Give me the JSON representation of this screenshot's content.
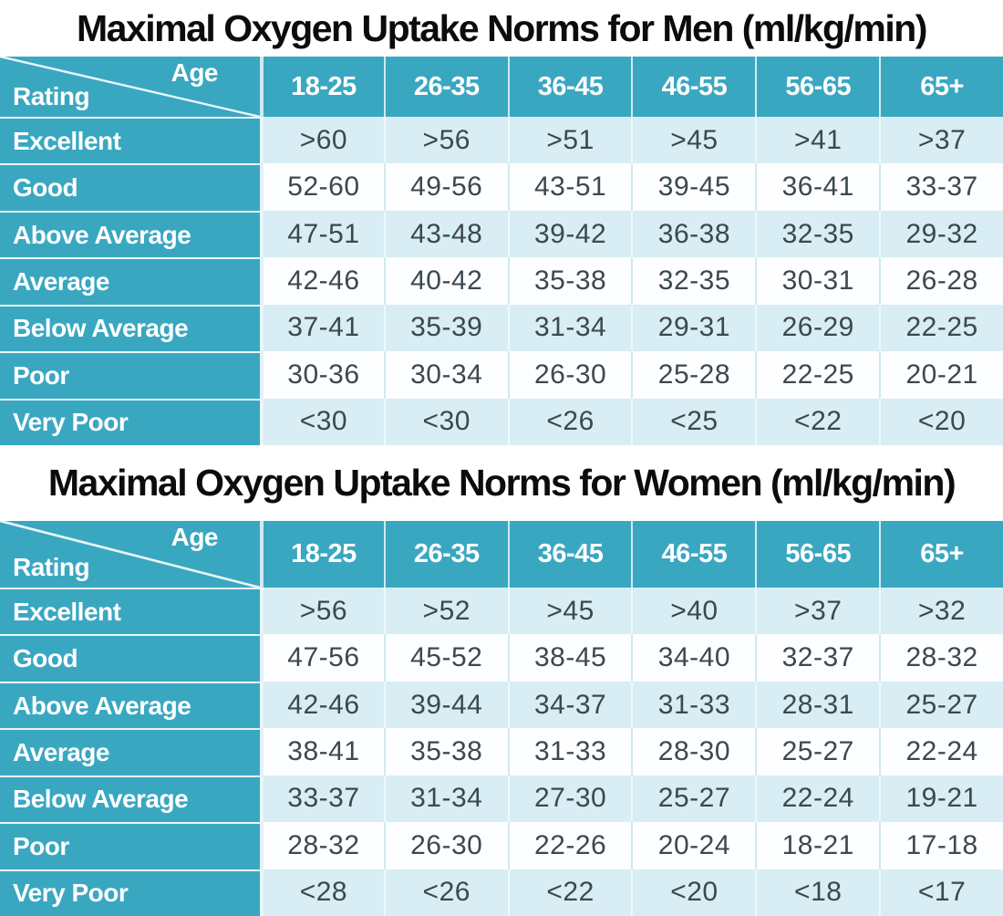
{
  "colors": {
    "teal": "#3aa7c1",
    "row_light": "#d8edf4",
    "row_white": "#fdfeff",
    "cell_divider": "#cfe9f1",
    "row_divider": "#e9f6fa",
    "value_text": "#3c4850",
    "header_text": "#ffffff",
    "title_text": "#0c0c0c"
  },
  "chart_data": [
    {
      "type": "table",
      "title": "Maximal Oxygen Uptake Norms for Men (ml/kg/min)",
      "corner_top_right": "Age",
      "corner_bottom_left": "Rating",
      "columns": [
        "18-25",
        "26-35",
        "36-45",
        "46-55",
        "56-65",
        "65+"
      ],
      "rows": [
        {
          "rating": "Excellent",
          "values": [
            ">60",
            ">56",
            ">51",
            ">45",
            ">41",
            ">37"
          ]
        },
        {
          "rating": "Good",
          "values": [
            "52-60",
            "49-56",
            "43-51",
            "39-45",
            "36-41",
            "33-37"
          ]
        },
        {
          "rating": "Above Average",
          "values": [
            "47-51",
            "43-48",
            "39-42",
            "36-38",
            "32-35",
            "29-32"
          ]
        },
        {
          "rating": "Average",
          "values": [
            "42-46",
            "40-42",
            "35-38",
            "32-35",
            "30-31",
            "26-28"
          ]
        },
        {
          "rating": "Below Average",
          "values": [
            "37-41",
            "35-39",
            "31-34",
            "29-31",
            "26-29",
            "22-25"
          ]
        },
        {
          "rating": "Poor",
          "values": [
            "30-36",
            "30-34",
            "26-30",
            "25-28",
            "22-25",
            "20-21"
          ]
        },
        {
          "rating": "Very Poor",
          "values": [
            "<30",
            "<30",
            "<26",
            "<25",
            "<22",
            "<20"
          ]
        }
      ]
    },
    {
      "type": "table",
      "title": "Maximal Oxygen Uptake Norms for Women (ml/kg/min)",
      "corner_top_right": "Age",
      "corner_bottom_left": "Rating",
      "columns": [
        "18-25",
        "26-35",
        "36-45",
        "46-55",
        "56-65",
        "65+"
      ],
      "rows": [
        {
          "rating": "Excellent",
          "values": [
            ">56",
            ">52",
            ">45",
            ">40",
            ">37",
            ">32"
          ]
        },
        {
          "rating": "Good",
          "values": [
            "47-56",
            "45-52",
            "38-45",
            "34-40",
            "32-37",
            "28-32"
          ]
        },
        {
          "rating": "Above Average",
          "values": [
            "42-46",
            "39-44",
            "34-37",
            "31-33",
            "28-31",
            "25-27"
          ]
        },
        {
          "rating": "Average",
          "values": [
            "38-41",
            "35-38",
            "31-33",
            "28-30",
            "25-27",
            "22-24"
          ]
        },
        {
          "rating": "Below Average",
          "values": [
            "33-37",
            "31-34",
            "27-30",
            "25-27",
            "22-24",
            "19-21"
          ]
        },
        {
          "rating": "Poor",
          "values": [
            "28-32",
            "26-30",
            "22-26",
            "20-24",
            "18-21",
            "17-18"
          ]
        },
        {
          "rating": "Very Poor",
          "values": [
            "<28",
            "<26",
            "<22",
            "<20",
            "<18",
            "<17"
          ]
        }
      ]
    }
  ]
}
